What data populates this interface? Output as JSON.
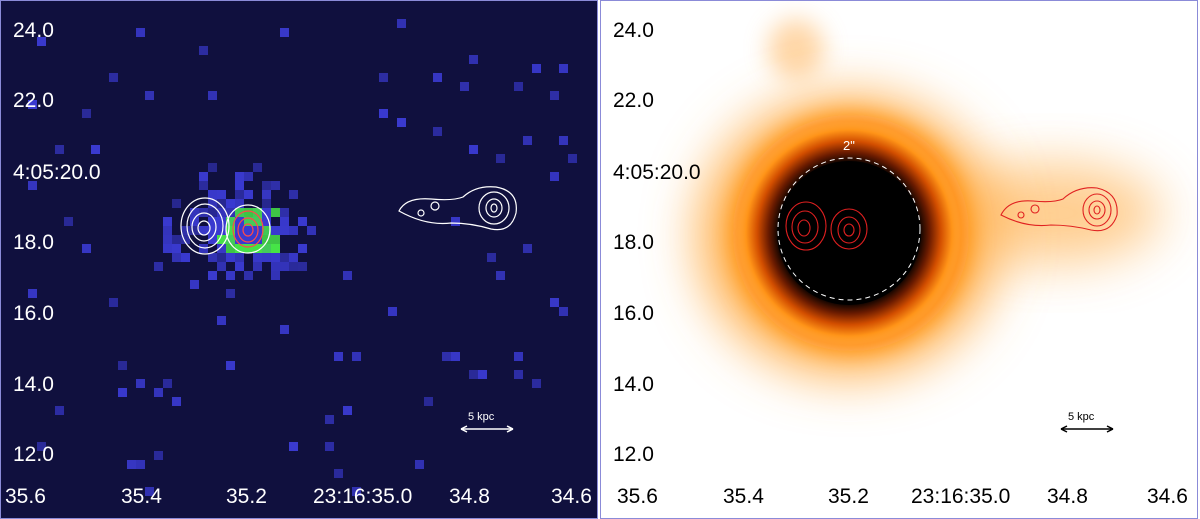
{
  "left_panel": {
    "y_ticks": [
      "24.0",
      "22.0",
      "4:05:20.0",
      "18.0",
      "16.0",
      "14.0",
      "12.0"
    ],
    "x_ticks": [
      "35.6",
      "35.4",
      "35.2",
      "23:16:35.0",
      "34.8",
      "34.6"
    ],
    "scale_bar_label": "5 kpc",
    "colors": {
      "background": "#10103e",
      "pixels": "#3838c8",
      "bright": "#47e447",
      "contour_outer": "#ffffff",
      "contour_core": "#ff4a4a"
    }
  },
  "right_panel": {
    "y_ticks": [
      "24.0",
      "22.0",
      "4:05:20.0",
      "18.0",
      "16.0",
      "14.0",
      "12.0"
    ],
    "x_ticks": [
      "35.6",
      "35.4",
      "35.2",
      "23:16:35.0",
      "34.8",
      "34.6"
    ],
    "scale_bar_label": "5 kpc",
    "aperture_label": "2\"",
    "colors": {
      "glow": "#ff9a1a",
      "core": "#000000",
      "contour": "#e02020",
      "aperture": "#ffffff"
    }
  }
}
